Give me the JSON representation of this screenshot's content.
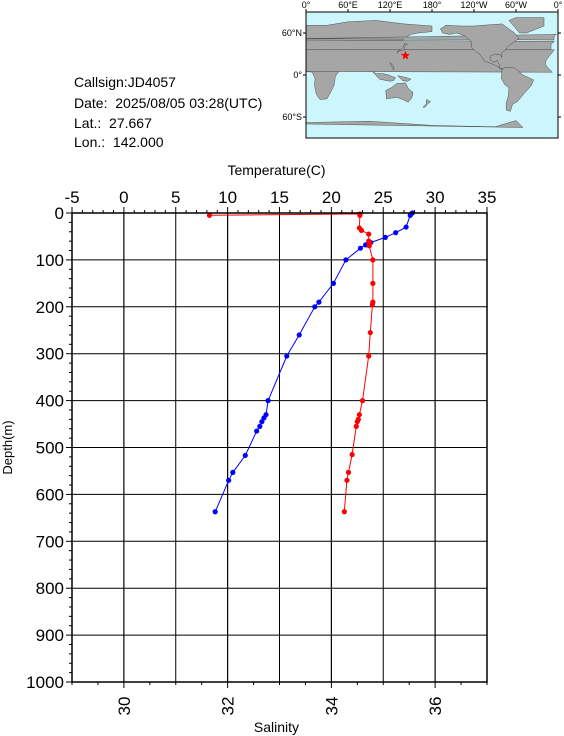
{
  "station": {
    "callsign_label": "Callsign:",
    "callsign": "JD4057",
    "date_label": "Date:",
    "date": "2025/08/05 03:28(UTC)",
    "lat_label": "Lat.:",
    "lat": "27.667",
    "lon_label": "Lon.:",
    "lon": "142.000"
  },
  "map": {
    "top_labels": [
      "0°",
      "60°E",
      "120°E",
      "180°",
      "120°W",
      "60°W",
      "0°"
    ],
    "left_labels": [
      "60°N",
      "0°",
      "60°S"
    ],
    "ocean_color": "#ccf6fb",
    "land_color": "#a6a6a6",
    "marker": {
      "lat": 27.667,
      "lon": 142.0,
      "color": "#ff0000"
    }
  },
  "chart_data": {
    "type": "line",
    "y_axis": {
      "label": "Depth(m)",
      "range": [
        0,
        1000
      ],
      "inverted": true,
      "ticks": [
        0,
        100,
        200,
        300,
        400,
        500,
        600,
        700,
        800,
        900,
        1000
      ]
    },
    "temperature_axis": {
      "label": "Temperature(C)",
      "position": "top",
      "range": [
        -5,
        35
      ],
      "ticks": [
        -5,
        0,
        5,
        10,
        15,
        20,
        25,
        30,
        35
      ]
    },
    "salinity_axis": {
      "label": "Salinity",
      "position": "bottom",
      "range": [
        29,
        37
      ],
      "ticks": [
        30,
        32,
        34,
        36
      ]
    },
    "grid": true,
    "series": [
      {
        "axis": "temperature",
        "color": "#0000ff",
        "points": [
          [
            27.8,
            0
          ],
          [
            27.6,
            5
          ],
          [
            27.2,
            30
          ],
          [
            26.2,
            42
          ],
          [
            25.2,
            52
          ],
          [
            23.8,
            63
          ],
          [
            23.3,
            68
          ],
          [
            22.8,
            75
          ],
          [
            21.4,
            100
          ],
          [
            20.2,
            150
          ],
          [
            18.8,
            190
          ],
          [
            18.4,
            200
          ],
          [
            16.9,
            260
          ],
          [
            15.7,
            305
          ],
          [
            13.9,
            400
          ],
          [
            13.7,
            430
          ],
          [
            13.5,
            437
          ],
          [
            13.3,
            445
          ],
          [
            13.1,
            455
          ],
          [
            12.8,
            465
          ],
          [
            11.7,
            517
          ],
          [
            10.5,
            553
          ],
          [
            10.1,
            570
          ],
          [
            8.8,
            637
          ]
        ]
      },
      {
        "axis": "salinity",
        "color": "#ff0000",
        "points": [
          [
            31.65,
            5
          ],
          [
            34.55,
            2
          ],
          [
            34.55,
            5
          ],
          [
            34.54,
            32
          ],
          [
            34.58,
            37
          ],
          [
            34.72,
            45
          ],
          [
            34.72,
            60
          ],
          [
            34.74,
            65
          ],
          [
            34.73,
            70
          ],
          [
            34.8,
            100
          ],
          [
            34.8,
            150
          ],
          [
            34.8,
            190
          ],
          [
            34.79,
            195
          ],
          [
            34.75,
            255
          ],
          [
            34.72,
            305
          ],
          [
            34.6,
            400
          ],
          [
            34.54,
            430
          ],
          [
            34.52,
            440
          ],
          [
            34.5,
            445
          ],
          [
            34.48,
            455
          ],
          [
            34.4,
            515
          ],
          [
            34.33,
            553
          ],
          [
            34.3,
            570
          ],
          [
            34.25,
            637
          ]
        ]
      }
    ]
  }
}
